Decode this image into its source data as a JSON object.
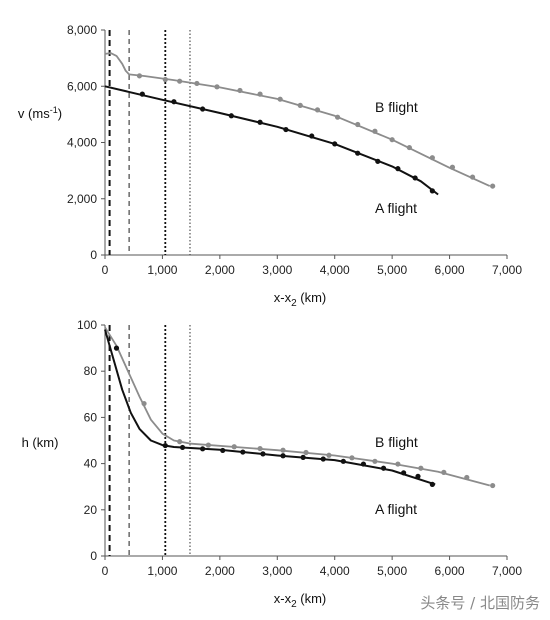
{
  "chart_data": [
    {
      "type": "line",
      "ylabel": "v (ms",
      "ylabel_sup": "-1",
      "ylabel_end": ")",
      "xlabel": "x-x",
      "xlabel_sub": "2",
      "xlabel_end": " (km)",
      "xlim": [
        0,
        7000
      ],
      "ylim": [
        0,
        8000
      ],
      "xticks": [
        0,
        1000,
        2000,
        3000,
        4000,
        5000,
        6000,
        7000
      ],
      "xtick_labels": [
        "0",
        "1,000",
        "2,000",
        "3,000",
        "4,000",
        "5,000",
        "6,000",
        "7,000"
      ],
      "yticks": [
        0,
        2000,
        4000,
        6000,
        8000
      ],
      "ytick_labels": [
        "0",
        "2,000",
        "4,000",
        "6,000",
        "8,000"
      ],
      "vlines": [
        {
          "x": 80,
          "style": "dashed-heavy"
        },
        {
          "x": 420,
          "style": "dashed"
        },
        {
          "x": 1050,
          "style": "dotted-heavy"
        },
        {
          "x": 1480,
          "style": "dotted"
        }
      ],
      "series": [
        {
          "name": "B flight",
          "color": "#8c8c8c",
          "line": [
            [
              0,
              7150
            ],
            [
              100,
              7180
            ],
            [
              200,
              7080
            ],
            [
              300,
              6800
            ],
            [
              360,
              6550
            ],
            [
              420,
              6420
            ],
            [
              700,
              6360
            ],
            [
              1200,
              6220
            ],
            [
              2000,
              5960
            ],
            [
              3000,
              5550
            ],
            [
              4000,
              4950
            ],
            [
              5000,
              4100
            ],
            [
              6000,
              3100
            ],
            [
              6700,
              2450
            ]
          ],
          "points": [
            [
              600,
              6370
            ],
            [
              1050,
              6240
            ],
            [
              1300,
              6180
            ],
            [
              1600,
              6100
            ],
            [
              1950,
              5980
            ],
            [
              2350,
              5850
            ],
            [
              2700,
              5720
            ],
            [
              3050,
              5540
            ],
            [
              3400,
              5320
            ],
            [
              3700,
              5160
            ],
            [
              4050,
              4900
            ],
            [
              4400,
              4640
            ],
            [
              4700,
              4400
            ],
            [
              5000,
              4100
            ],
            [
              5300,
              3820
            ],
            [
              5700,
              3460
            ],
            [
              6050,
              3120
            ],
            [
              6400,
              2770
            ],
            [
              6750,
              2450
            ]
          ]
        },
        {
          "name": "A flight",
          "color": "#111111",
          "line": [
            [
              0,
              6000
            ],
            [
              1000,
              5520
            ],
            [
              2000,
              5050
            ],
            [
              3000,
              4560
            ],
            [
              4000,
              3950
            ],
            [
              5000,
              3150
            ],
            [
              5500,
              2620
            ],
            [
              5800,
              2150
            ]
          ],
          "points": [
            [
              650,
              5720
            ],
            [
              1200,
              5450
            ],
            [
              1700,
              5190
            ],
            [
              2200,
              4950
            ],
            [
              2700,
              4720
            ],
            [
              3150,
              4460
            ],
            [
              3600,
              4230
            ],
            [
              4000,
              3950
            ],
            [
              4400,
              3620
            ],
            [
              4750,
              3330
            ],
            [
              5100,
              3070
            ],
            [
              5400,
              2740
            ],
            [
              5700,
              2280
            ]
          ]
        }
      ],
      "annotations": [
        {
          "text": "B flight",
          "series": 0
        },
        {
          "text": "A flight",
          "series": 1
        }
      ]
    },
    {
      "type": "line",
      "ylabel": "h (km)",
      "xlabel": "x-x",
      "xlabel_sub": "2",
      "xlabel_end": " (km)",
      "xlim": [
        0,
        7000
      ],
      "ylim": [
        0,
        100
      ],
      "xticks": [
        0,
        1000,
        2000,
        3000,
        4000,
        5000,
        6000,
        7000
      ],
      "xtick_labels": [
        "0",
        "1,000",
        "2,000",
        "3,000",
        "4,000",
        "5,000",
        "6,000",
        "7,000"
      ],
      "yticks": [
        0,
        20,
        40,
        60,
        80,
        100
      ],
      "ytick_labels": [
        "0",
        "20",
        "40",
        "60",
        "80",
        "100"
      ],
      "vlines": [
        {
          "x": 80,
          "style": "dashed-heavy"
        },
        {
          "x": 420,
          "style": "dashed"
        },
        {
          "x": 1050,
          "style": "dotted-heavy"
        },
        {
          "x": 1480,
          "style": "dotted"
        }
      ],
      "series": [
        {
          "name": "B flight",
          "color": "#8c8c8c",
          "line": [
            [
              0,
              99
            ],
            [
              200,
              91
            ],
            [
              400,
              80
            ],
            [
              600,
              69
            ],
            [
              800,
              59
            ],
            [
              1000,
              53
            ],
            [
              1200,
              50
            ],
            [
              1500,
              48.6
            ],
            [
              3000,
              45.8
            ],
            [
              4000,
              43.5
            ],
            [
              5000,
              40
            ],
            [
              5800,
              36.5
            ],
            [
              6700,
              30.5
            ]
          ],
          "points": [
            [
              680,
              66
            ],
            [
              1300,
              49.5
            ],
            [
              1800,
              48
            ],
            [
              2250,
              47.3
            ],
            [
              2700,
              46.5
            ],
            [
              3100,
              45.8
            ],
            [
              3500,
              44.8
            ],
            [
              3900,
              43.6
            ],
            [
              4300,
              42.5
            ],
            [
              4700,
              41
            ],
            [
              5100,
              39.8
            ],
            [
              5500,
              38
            ],
            [
              5900,
              36.2
            ],
            [
              6300,
              34
            ],
            [
              6750,
              30.5
            ]
          ]
        },
        {
          "name": "A flight",
          "color": "#111111",
          "line": [
            [
              0,
              98
            ],
            [
              150,
              85
            ],
            [
              300,
              72
            ],
            [
              450,
              62
            ],
            [
              600,
              55
            ],
            [
              800,
              50
            ],
            [
              1000,
              48
            ],
            [
              1200,
              47.2
            ],
            [
              2000,
              46
            ],
            [
              3000,
              43.5
            ],
            [
              4000,
              41.5
            ],
            [
              5000,
              37
            ],
            [
              5750,
              31
            ]
          ],
          "points": [
            [
              200,
              90
            ],
            [
              1050,
              47.8
            ],
            [
              1350,
              47
            ],
            [
              1700,
              46.4
            ],
            [
              2050,
              45.7
            ],
            [
              2400,
              45
            ],
            [
              2750,
              44.2
            ],
            [
              3100,
              43.4
            ],
            [
              3450,
              42.7
            ],
            [
              3800,
              42
            ],
            [
              4150,
              41
            ],
            [
              4500,
              39.8
            ],
            [
              4850,
              38
            ],
            [
              5200,
              36
            ],
            [
              5450,
              34.5
            ],
            [
              5700,
              31
            ]
          ]
        }
      ],
      "annotations": [
        {
          "text": "B flight",
          "series": 0
        },
        {
          "text": "A flight",
          "series": 1
        }
      ]
    }
  ],
  "watermark": "头条号 / 北国防务"
}
